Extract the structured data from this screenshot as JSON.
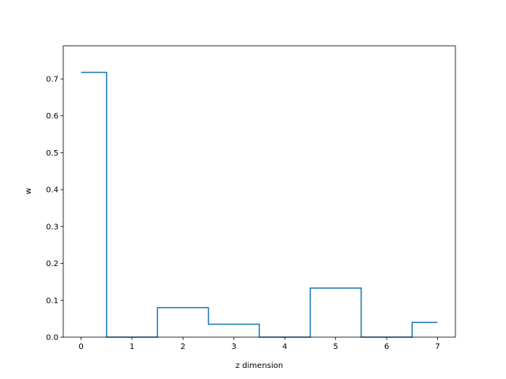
{
  "chart_data": {
    "type": "line",
    "drawstyle": "steps-mid",
    "title": "",
    "xlabel": "z dimension",
    "ylabel": "w",
    "x": [
      0,
      1,
      2,
      3,
      4,
      5,
      6,
      7
    ],
    "series": [
      {
        "values": [
          0.718,
          0.0,
          0.08,
          0.035,
          0.0,
          0.133,
          0.0,
          0.04
        ],
        "color": "#1f77b4"
      }
    ],
    "xlim": [
      -0.35,
      7.35
    ],
    "ylim": [
      0,
      0.79
    ],
    "xticks": [
      "0",
      "1",
      "2",
      "3",
      "4",
      "5",
      "6",
      "7"
    ],
    "yticks": [
      "0.0",
      "0.1",
      "0.2",
      "0.3",
      "0.4",
      "0.5",
      "0.6",
      "0.7"
    ],
    "grid": false,
    "legend": "none"
  }
}
